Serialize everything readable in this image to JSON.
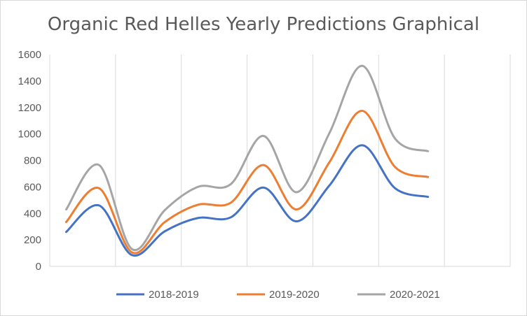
{
  "chart_data": {
    "type": "line",
    "title": "Organic Red Helles Yearly Predictions Graphical",
    "xlabel": "",
    "ylabel": "",
    "ylim": [
      0,
      1600
    ],
    "yticks": [
      "0",
      "200",
      "400",
      "600",
      "800",
      "1000",
      "1200",
      "1400",
      "1600"
    ],
    "grid": "vertical",
    "legend": "bottom",
    "smooth": true,
    "x": [
      1,
      2,
      3,
      4,
      5,
      6,
      7,
      8,
      9,
      10,
      11,
      12
    ],
    "series": [
      {
        "name": "2018-2019",
        "color": "#4472c4",
        "values": [
          260,
          460,
          85,
          265,
          365,
          370,
          595,
          340,
          610,
          915,
          590,
          525
        ]
      },
      {
        "name": "2019-2020",
        "color": "#ed7d31",
        "values": [
          335,
          590,
          105,
          335,
          465,
          480,
          765,
          430,
          785,
          1175,
          750,
          675
        ]
      },
      {
        "name": "2020-2021",
        "color": "#a5a5a5",
        "values": [
          430,
          765,
          130,
          425,
          600,
          620,
          985,
          560,
          1005,
          1515,
          965,
          870
        ]
      }
    ]
  }
}
